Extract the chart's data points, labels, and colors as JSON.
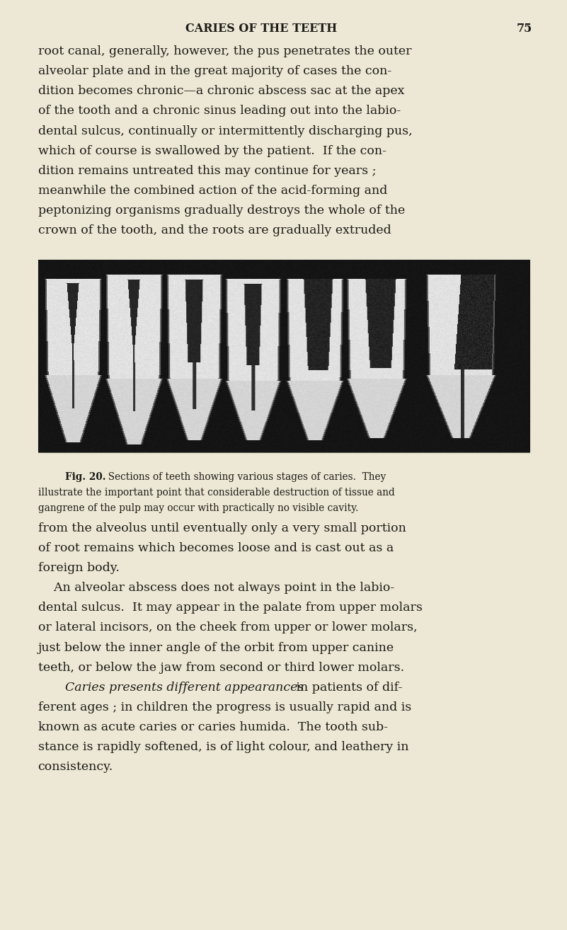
{
  "page_bg": "#ede8d5",
  "text_color": "#1c1a16",
  "header_title": "CARIES OF THE TEETH",
  "page_number": "75",
  "header_fontsize": 11.5,
  "body_fontsize": 12.5,
  "caption_fontsize": 9.8,
  "fig_label_fontsize": 9.8,
  "para1_lines": [
    "root canal, generally, however, the pus penetrates the outer",
    "alveolar plate and in the great majority of cases the con-",
    "dition becomes chronic—a chronic abscess sac at the apex",
    "of the tooth and a chronic sinus leading out into the labio-",
    "dental sulcus, continually or intermittently discharging pus,",
    "which of course is swallowed by the patient.  If the con-",
    "dition remains untreated this may continue for years ;",
    "meanwhile the combined action of the acid-forming and",
    "peptonizing organisms gradually destroys the whole of the",
    "crown of the tooth, and the roots are gradually extruded"
  ],
  "caption_fig": "Fig. 20.",
  "caption_line1": "  Sections of teeth showing various stages of caries.  They",
  "caption_line2": "illustrate the important point that considerable destruction of tissue and",
  "caption_line3": "gangrene of the pulp may occur with practically no visible cavity.",
  "para2_lines": [
    "from the alveolus until eventually only a very small portion",
    "of root remains which becomes loose and is cast out as a",
    "foreign body."
  ],
  "para3_indent": "    An alveolar abscess does not always point in the labio-",
  "para3_lines": [
    "dental sulcus.  It may appear in the palate from upper molars",
    "or lateral incisors, on the cheek from upper or lower molars,",
    "just below the inner angle of the orbit from upper canine",
    "teeth, or below the jaw from second or third lower molars."
  ],
  "para4_italic": "Caries presents different appearances",
  "para4_rest1": " in patients of dif-",
  "para4_lines": [
    "ferent ages ; in children the progress is usually rapid and is",
    "known as acute caries or caries humida.  The tooth sub-",
    "stance is rapidly softened, is of light colour, and leathery in",
    "consistency."
  ]
}
